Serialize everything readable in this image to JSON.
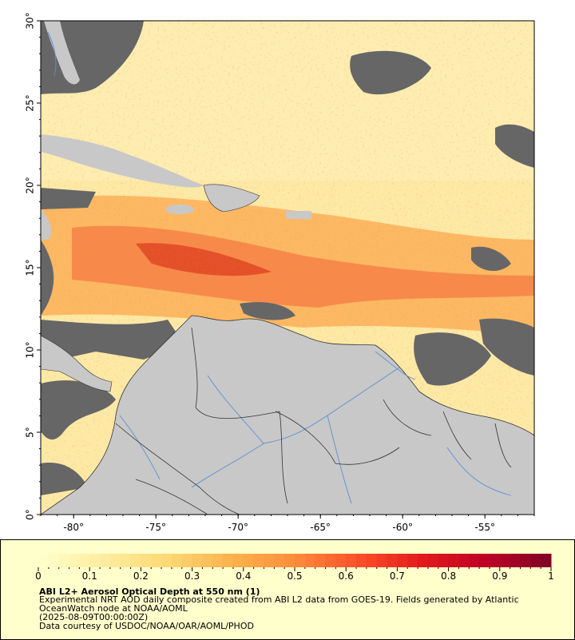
{
  "map": {
    "x_ticks": [
      "-80°",
      "-75°",
      "-70°",
      "-65°",
      "-60°",
      "-55°"
    ],
    "x_tick_values": [
      -80,
      -75,
      -70,
      -65,
      -60,
      -55
    ],
    "y_ticks": [
      "0°",
      "5°",
      "10°",
      "15°",
      "20°",
      "25°",
      "30°"
    ],
    "y_tick_values": [
      0,
      5,
      10,
      15,
      20,
      25,
      30
    ],
    "lon_range": [
      -82,
      -52
    ],
    "lat_range": [
      0,
      30
    ],
    "colors": {
      "land": "#c8c8c8",
      "no_data": "#666666",
      "rivers": "#5b8fd0",
      "borders": "#333333"
    }
  },
  "legend": {
    "ticks": [
      "0",
      "0.1",
      "0.2",
      "0.3",
      "0.4",
      "0.5",
      "0.6",
      "0.7",
      "0.8",
      "0.9",
      "1"
    ],
    "colorscale": [
      "#ffffcc",
      "#ffeda0",
      "#fed976",
      "#feb24c",
      "#fd8d3c",
      "#fc4e2a",
      "#e31a1c",
      "#bd0026",
      "#800026"
    ],
    "title": "ABI L2+ Aerosol Optical Depth at 550 nm (1)",
    "description": "Experimental NRT AOD daily composite created from ABI L2 data from GOES-19. Fields generated by Atlantic OceanWatch node at NOAA/AOML",
    "date": "(2025-08-09T00:00:00Z)",
    "credit": "Data courtesy of USDOC/NOAA/OAR/AOML/PHOD",
    "background": "#ffffcc"
  }
}
